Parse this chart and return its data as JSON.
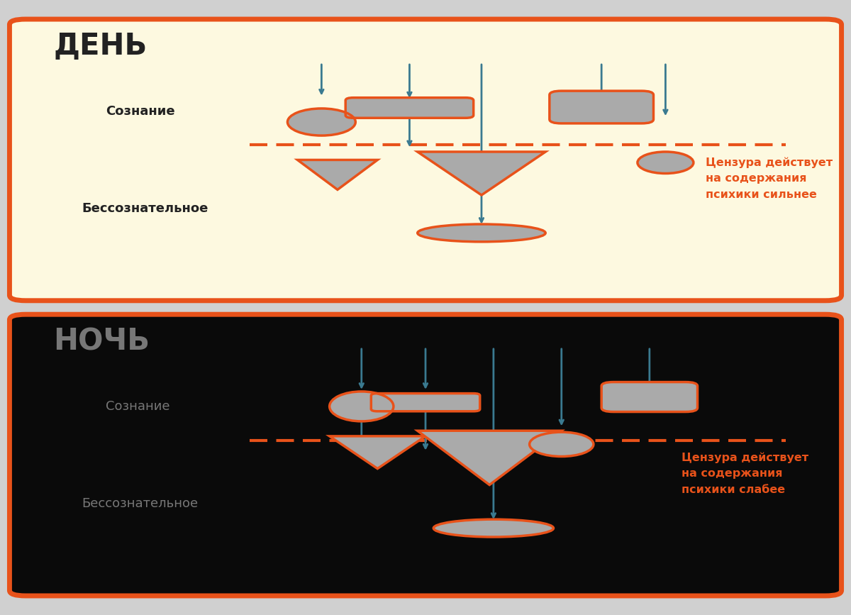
{
  "bg_color": "#d0d0d0",
  "day_bg": "#fdf9e0",
  "night_bg": "#0a0a0a",
  "border_color": "#e8521a",
  "shape_fill": "#aaaaaa",
  "shape_edge": "#e8521a",
  "arrow_color": "#3a7a90",
  "dashed_line_color": "#e8521a",
  "day_title": "ДЕНЬ",
  "night_title": "НОЧЬ",
  "day_title_color": "#222222",
  "night_title_color": "#777777",
  "label_color_day": "#222222",
  "label_color_night": "#777777",
  "soznanie_label": "Сознание",
  "bessoznanie_label": "Бессознательное",
  "censure_day": "Цензура действует\nна содержания\nпсихики сильнее",
  "censure_night": "Цензура действует\nна содержания\nпсихики слабее",
  "censure_color": "#e8521a"
}
